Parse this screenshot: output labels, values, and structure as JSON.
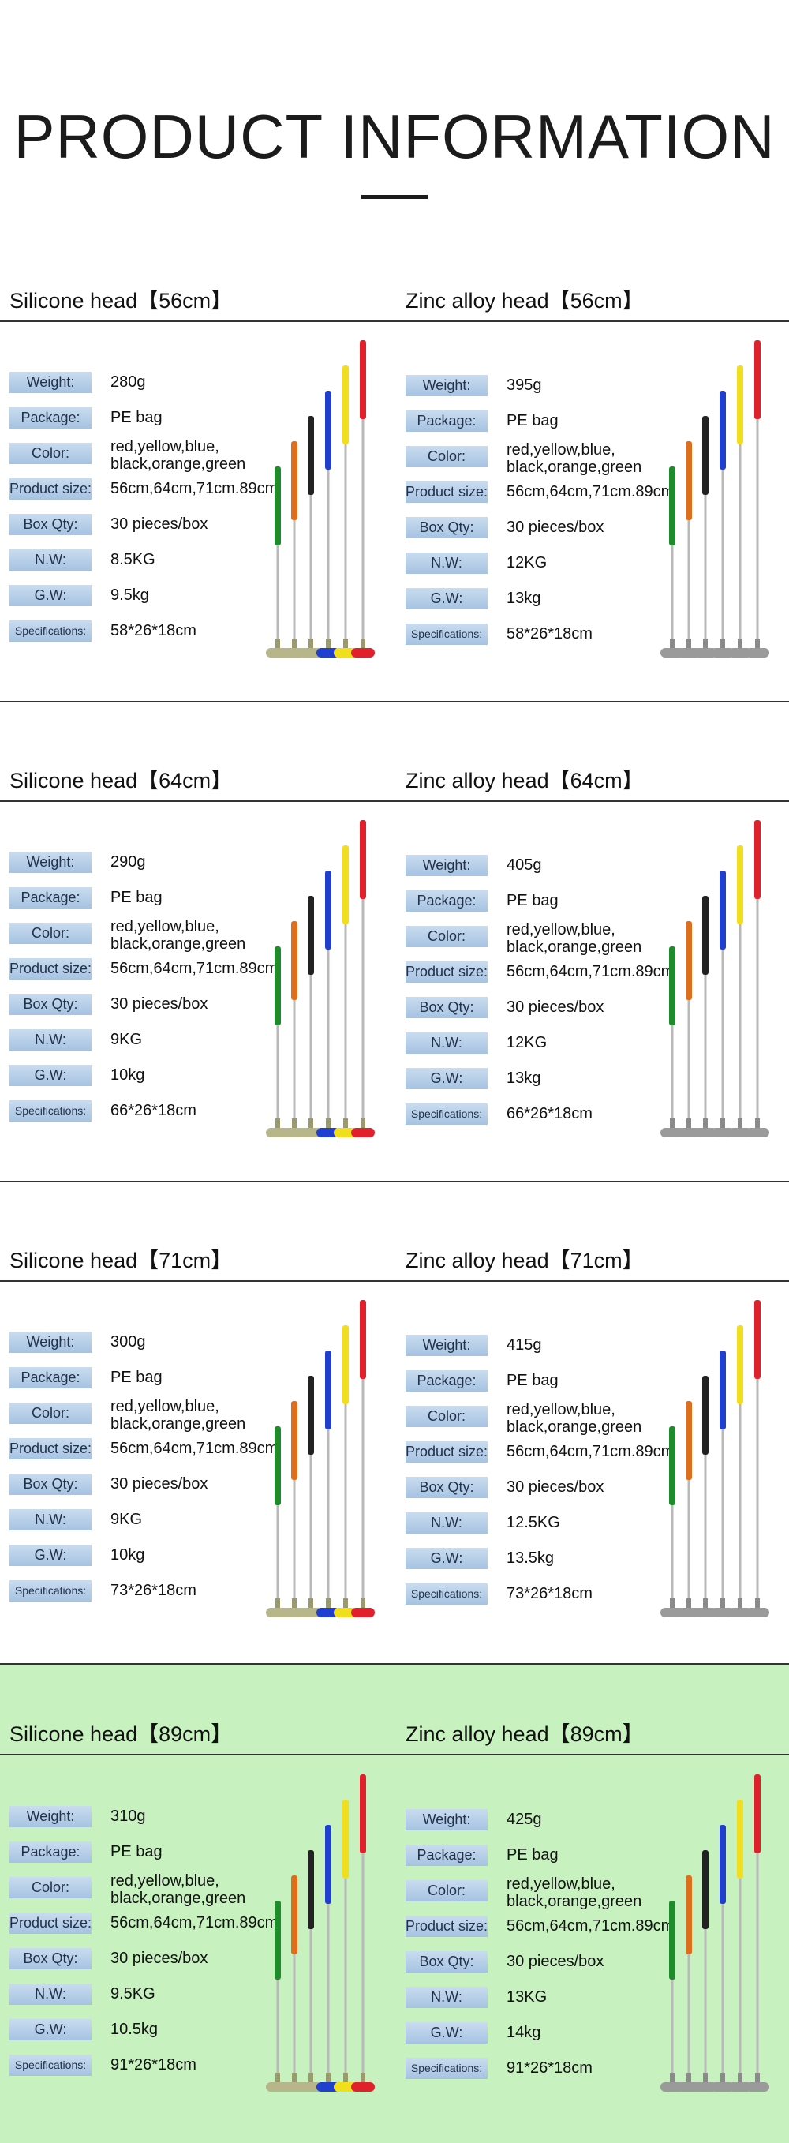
{
  "header": {
    "title": "PRODUCT INFORMATION"
  },
  "labels": {
    "weight": "Weight:",
    "package": "Package:",
    "color": "Color:",
    "product_size": "Product size:",
    "box_qty": "Box Qty:",
    "nw": "N.W:",
    "gw": "G.W:",
    "specifications": "Specifications:"
  },
  "colors": {
    "green_band": "#c8f1c0",
    "label_blue": "#a6c3e2",
    "silicone_grip_colors": [
      "#1f8c2c",
      "#e06d1a",
      "#222222",
      "#1f3fcf",
      "#f1df1d",
      "#e0202a"
    ],
    "zinc_head": "#9a9a9a"
  },
  "sections": [
    {
      "left": {
        "heading": "Silicone head【56cm】",
        "weight": "280g",
        "package": "PE bag",
        "color_line1": "red,yellow,blue,",
        "color_line2": "black,orange,green",
        "product_size": "56cm,64cm,71cm.89cm",
        "box_qty": "30 pieces/box",
        "nw": "8.5KG",
        "gw": "9.5kg",
        "specifications": "58*26*18cm"
      },
      "right": {
        "heading": "Zinc alloy head【56cm】",
        "weight": "395g",
        "package": "PE bag",
        "color_line1": "red,yellow,blue,",
        "color_line2": "black,orange,green",
        "product_size": "56cm,64cm,71cm.89cm",
        "box_qty": "30 pieces/box",
        "nw": "12KG",
        "gw": "13kg",
        "specifications": "58*26*18cm"
      }
    },
    {
      "left": {
        "heading": "Silicone head【64cm】",
        "weight": "290g",
        "package": "PE bag",
        "color_line1": "red,yellow,blue,",
        "color_line2": "black,orange,green",
        "product_size": "56cm,64cm,71cm.89cm",
        "box_qty": "30 pieces/box",
        "nw": "9KG",
        "gw": "10kg",
        "specifications": "66*26*18cm"
      },
      "right": {
        "heading": "Zinc alloy head【64cm】",
        "weight": "405g",
        "package": "PE bag",
        "color_line1": "red,yellow,blue,",
        "color_line2": "black,orange,green",
        "product_size": "56cm,64cm,71cm.89cm",
        "box_qty": "30 pieces/box",
        "nw": "12KG",
        "gw": "13kg",
        "specifications": "66*26*18cm"
      }
    },
    {
      "left": {
        "heading": "Silicone head【71cm】",
        "weight": "300g",
        "package": "PE bag",
        "color_line1": "red,yellow,blue,",
        "color_line2": "black,orange,green",
        "product_size": "56cm,64cm,71cm.89cm",
        "box_qty": "30 pieces/box",
        "nw": "9KG",
        "gw": "10kg",
        "specifications": "73*26*18cm"
      },
      "right": {
        "heading": "Zinc alloy head【71cm】",
        "weight": "415g",
        "package": "PE bag",
        "color_line1": "red,yellow,blue,",
        "color_line2": "black,orange,green",
        "product_size": "56cm,64cm,71cm.89cm",
        "box_qty": "30 pieces/box",
        "nw": "12.5KG",
        "gw": "13.5kg",
        "specifications": "73*26*18cm"
      }
    },
    {
      "left": {
        "heading": "Silicone head【89cm】",
        "weight": "310g",
        "package": "PE bag",
        "color_line1": "red,yellow,blue,",
        "color_line2": "black,orange,green",
        "product_size": "56cm,64cm,71cm.89cm",
        "box_qty": "30 pieces/box",
        "nw": "9.5KG",
        "gw": "10.5kg",
        "specifications": "91*26*18cm"
      },
      "right": {
        "heading": "Zinc alloy head【89cm】",
        "weight": "425g",
        "package": "PE bag",
        "color_line1": "red,yellow,blue,",
        "color_line2": "black,orange,green",
        "product_size": "56cm,64cm,71cm.89cm",
        "box_qty": "30 pieces/box",
        "nw": "13KG",
        "gw": "14kg",
        "specifications": "91*26*18cm"
      }
    }
  ]
}
